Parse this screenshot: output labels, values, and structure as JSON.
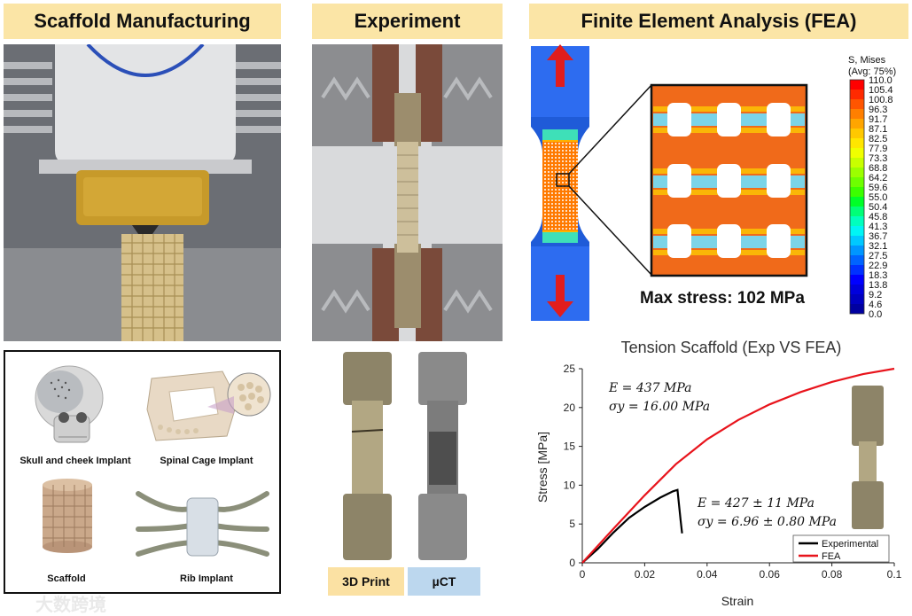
{
  "headers": {
    "manufacturing": "Scaffold Manufacturing",
    "experiment": "Experiment",
    "fea": "Finite Element Analysis (FEA)"
  },
  "implants": {
    "skull": "Skull and cheek Implant",
    "spinal": "Spinal Cage Implant",
    "scaffold": "Scaffold",
    "rib": "Rib Implant"
  },
  "specimen_tags": {
    "print": "3D Print",
    "uct": "µCT"
  },
  "fea": {
    "max_stress": "Max stress: 102 MPa",
    "colorbar_title_1": "S, Mises",
    "colorbar_title_2": "(Avg: 75%)",
    "colorbar_values": [
      "110.0",
      "105.4",
      "100.8",
      "96.3",
      "91.7",
      "87.1",
      "82.5",
      "77.9",
      "73.3",
      "68.8",
      "64.2",
      "59.6",
      "55.0",
      "50.4",
      "45.8",
      "41.3",
      "36.7",
      "32.1",
      "27.5",
      "22.9",
      "18.3",
      "13.8",
      "9.2",
      "4.6",
      "0.0"
    ],
    "colorbar_colors": [
      "#ff0000",
      "#ff2a00",
      "#ff5500",
      "#ff7f00",
      "#ffa500",
      "#ffc800",
      "#ffe600",
      "#f0ff00",
      "#c8ff00",
      "#9bff00",
      "#6eff00",
      "#3cff00",
      "#00ff28",
      "#00ff78",
      "#00ffbe",
      "#00f5f5",
      "#00c8ff",
      "#0096ff",
      "#0064ff",
      "#0032ff",
      "#0000ff",
      "#0000dc",
      "#0000c0",
      "#0000a0"
    ]
  },
  "watermark": "大数跨境",
  "chart_data": {
    "type": "line",
    "title": "Tension Scaffold (Exp VS FEA)",
    "xlabel": "Strain",
    "ylabel": "Stress [MPa]",
    "xlim": [
      0,
      0.1
    ],
    "ylim": [
      0,
      25
    ],
    "xticks": [
      "0",
      "0.02",
      "0.04",
      "0.06",
      "0.08",
      "0.1"
    ],
    "yticks": [
      "0",
      "5",
      "10",
      "15",
      "20",
      "25"
    ],
    "grid": false,
    "legend_position": "bottom-right",
    "annotations": [
      {
        "line1": "E = 437 MPa",
        "line2": "σy = 16.00 MPa"
      },
      {
        "line1": "E = 427 ± 11 MPa",
        "line2": "σy = 6.96 ± 0.80 MPa"
      }
    ],
    "series": [
      {
        "name": "Experimental",
        "color": "#000000",
        "x": [
          0,
          0.005,
          0.01,
          0.015,
          0.02,
          0.025,
          0.029,
          0.0305,
          0.031,
          0.0315,
          0.032
        ],
        "y": [
          0,
          1.8,
          3.9,
          5.8,
          7.2,
          8.4,
          9.2,
          9.4,
          7.5,
          5.5,
          3.8
        ]
      },
      {
        "name": "FEA",
        "color": "#e8141c",
        "x": [
          0,
          0.01,
          0.02,
          0.03,
          0.04,
          0.05,
          0.06,
          0.07,
          0.08,
          0.09,
          0.1
        ],
        "y": [
          0,
          4.4,
          8.7,
          12.7,
          15.9,
          18.4,
          20.4,
          22.0,
          23.3,
          24.3,
          25.0
        ]
      }
    ]
  }
}
